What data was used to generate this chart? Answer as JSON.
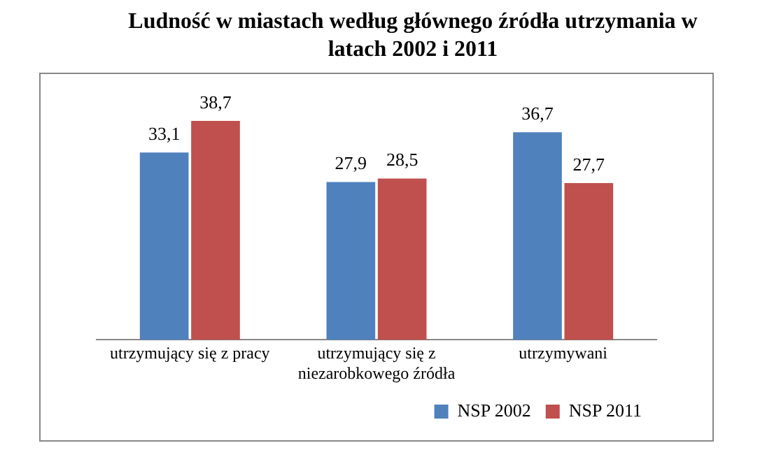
{
  "chart_data": {
    "type": "bar",
    "title": "Ludność w miastach według głównego źródła utrzymania w latach 2002 i 2011",
    "categories": [
      "utrzymujący się z pracy",
      "utrzymujący się z niezarobkowego źródła",
      "utrzymywani"
    ],
    "series": [
      {
        "name": "NSP 2002",
        "color": "#4f81bd",
        "values": [
          33.1,
          27.9,
          36.7
        ],
        "value_labels": [
          "33,1",
          "27,9",
          "36,7"
        ]
      },
      {
        "name": "NSP 2011",
        "color": "#c0504d",
        "values": [
          38.7,
          28.5,
          27.7
        ],
        "value_labels": [
          "38,7",
          "28,5",
          "27,7"
        ]
      }
    ],
    "legend": "bottom right",
    "grid": false
  }
}
